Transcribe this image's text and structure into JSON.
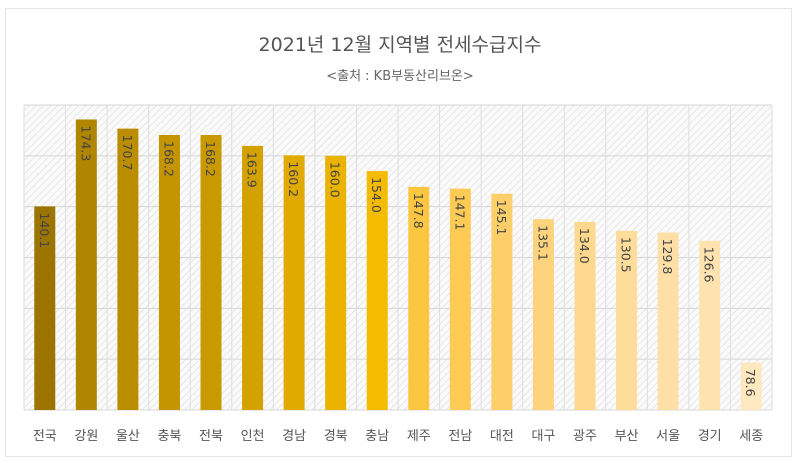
{
  "chart_data": {
    "type": "bar",
    "title": "2021년 12월 지역별 전세수급지수",
    "subtitle": "<출처 : KB부동산리브온>",
    "categories": [
      "전국",
      "강원",
      "울산",
      "충북",
      "전북",
      "인천",
      "경남",
      "경북",
      "충남",
      "제주",
      "전남",
      "대전",
      "대구",
      "광주",
      "부산",
      "서울",
      "경기",
      "세종"
    ],
    "values": [
      140.1,
      174.3,
      170.7,
      168.2,
      168.2,
      163.9,
      160.2,
      160.0,
      154.0,
      147.8,
      147.1,
      145.1,
      135.1,
      134.0,
      130.5,
      129.8,
      126.6,
      78.6
    ],
    "value_labels": [
      "140.1",
      "174.3",
      "170.7",
      "168.2",
      "168.2",
      "163.9",
      "160.2",
      "160.0",
      "154.0",
      "147.8",
      "147.1",
      "145.1",
      "135.1",
      "134.0",
      "130.5",
      "129.8",
      "126.6",
      "78.6"
    ],
    "colors": [
      "#9c7400",
      "#b08600",
      "#bb8e00",
      "#c49500",
      "#c99a00",
      "#d4a200",
      "#e0aa00",
      "#eab300",
      "#f5bb00",
      "#fcc640",
      "#fdca55",
      "#fdcf6a",
      "#fdd37d",
      "#fed88c",
      "#fedc9a",
      "#fedfa5",
      "#fee3b0",
      "#fee8c0"
    ],
    "ylim": [
      60,
      180
    ],
    "yticks": [
      60,
      80,
      100,
      120,
      140,
      160,
      180
    ],
    "grid": true,
    "legend": "none",
    "xlabel": "",
    "ylabel": ""
  }
}
